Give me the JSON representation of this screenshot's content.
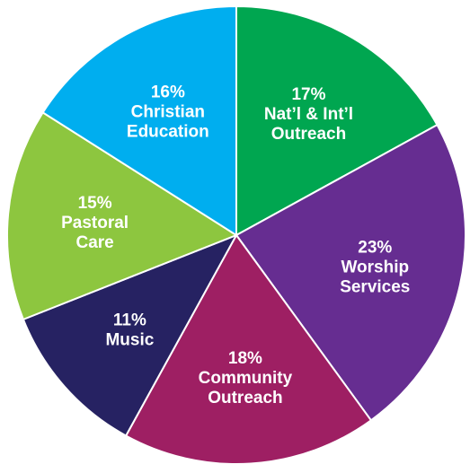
{
  "chart_data": {
    "type": "pie",
    "title": "",
    "start_angle_deg": 0,
    "direction": "clockwise",
    "legend": "none",
    "slices": [
      {
        "percent_label": "17%",
        "label_lines": [
          "Nat’l & Int’l",
          "Outreach"
        ],
        "value": 17,
        "color": "#00a650"
      },
      {
        "percent_label": "23%",
        "label_lines": [
          "Worship",
          "Services"
        ],
        "value": 23,
        "color": "#662d91"
      },
      {
        "percent_label": "18%",
        "label_lines": [
          "Community",
          "Outreach"
        ],
        "value": 18,
        "color": "#9e1f63"
      },
      {
        "percent_label": "11%",
        "label_lines": [
          "Music"
        ],
        "value": 11,
        "color": "#262262"
      },
      {
        "percent_label": "15%",
        "label_lines": [
          "Pastoral",
          "Care"
        ],
        "value": 15,
        "color": "#8dc63f"
      },
      {
        "percent_label": "16%",
        "label_lines": [
          "Christian",
          "Education"
        ],
        "value": 16,
        "color": "#00aeef"
      }
    ]
  }
}
